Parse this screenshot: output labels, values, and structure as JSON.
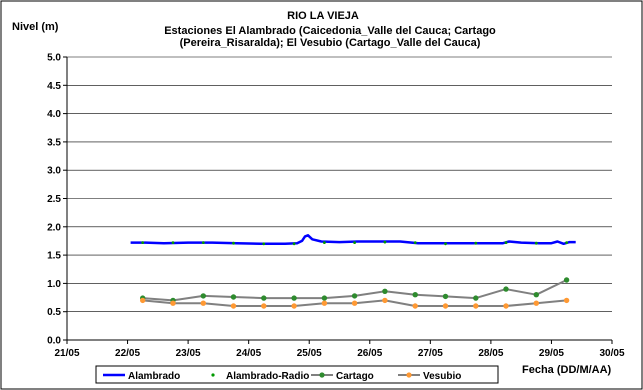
{
  "chart_data": {
    "type": "line",
    "title_lines": [
      "RIO LA VIEJA",
      "Estaciones El Alambrado (Caicedonia_Valle del Cauca; Cartago",
      "(Pereira_Risaralda);  El Vesubio (Cartago_Valle del Cauca)"
    ],
    "ylabel": "Nivel (m)",
    "xlabel": "Fecha (DD/M/AA)",
    "ylim": [
      0,
      5
    ],
    "xlim": [
      21.0,
      30.0
    ],
    "y_ticks": [
      "0.0",
      "0.5",
      "1.0",
      "1.5",
      "2.0",
      "2.5",
      "3.0",
      "3.5",
      "4.0",
      "4.5",
      "5.0"
    ],
    "x_ticks": [
      "21/05",
      "22/05",
      "23/05",
      "24/05",
      "25/05",
      "26/05",
      "27/05",
      "28/05",
      "29/05",
      "30/05"
    ],
    "grid": true,
    "legend_position": "bottom",
    "series": [
      {
        "name": "Alambrado",
        "color": "#0000ff",
        "style": "line",
        "x": [
          22.05,
          22.3,
          22.6,
          23.0,
          23.4,
          23.8,
          24.2,
          24.6,
          24.8,
          24.88,
          24.93,
          24.98,
          25.05,
          25.2,
          25.5,
          25.8,
          26.2,
          26.5,
          26.8,
          27.2,
          27.6,
          28.0,
          28.2,
          28.3,
          28.5,
          28.8,
          29.0,
          29.1,
          29.2,
          29.3,
          29.4
        ],
        "y": [
          1.72,
          1.72,
          1.71,
          1.72,
          1.72,
          1.71,
          1.7,
          1.7,
          1.71,
          1.75,
          1.83,
          1.85,
          1.78,
          1.74,
          1.73,
          1.74,
          1.74,
          1.74,
          1.71,
          1.71,
          1.71,
          1.71,
          1.71,
          1.74,
          1.72,
          1.71,
          1.71,
          1.74,
          1.7,
          1.73,
          1.73
        ]
      },
      {
        "name": "Alambrado-Radio",
        "color": "#009900",
        "style": "markers",
        "x": [
          22.25,
          22.75,
          23.25,
          23.75,
          24.25,
          24.75,
          25.25,
          25.75,
          26.25,
          26.75,
          27.25,
          27.75,
          28.25,
          28.75,
          29.25
        ],
        "y": [
          1.72,
          1.72,
          1.72,
          1.71,
          1.7,
          1.7,
          1.72,
          1.72,
          1.73,
          1.72,
          1.7,
          1.71,
          1.72,
          1.71,
          1.72
        ]
      },
      {
        "name": "Cartago",
        "color": "#808080",
        "marker_color": "#2e8b2e",
        "style": "line-markers",
        "x": [
          22.25,
          22.75,
          23.25,
          23.75,
          24.25,
          24.75,
          25.25,
          25.75,
          26.25,
          26.75,
          27.25,
          27.75,
          28.25,
          28.75,
          29.25
        ],
        "y": [
          0.74,
          0.7,
          0.78,
          0.76,
          0.74,
          0.74,
          0.74,
          0.78,
          0.86,
          0.8,
          0.77,
          0.74,
          0.9,
          0.8,
          1.06
        ]
      },
      {
        "name": "Vesubio",
        "color": "#808080",
        "marker_color": "#ff9933",
        "style": "line-markers",
        "x": [
          22.25,
          22.75,
          23.25,
          23.75,
          24.25,
          24.75,
          25.25,
          25.75,
          26.25,
          26.75,
          27.25,
          27.75,
          28.25,
          28.75,
          29.25
        ],
        "y": [
          0.7,
          0.65,
          0.65,
          0.6,
          0.6,
          0.6,
          0.65,
          0.65,
          0.7,
          0.6,
          0.6,
          0.6,
          0.6,
          0.65,
          0.7
        ]
      }
    ]
  }
}
